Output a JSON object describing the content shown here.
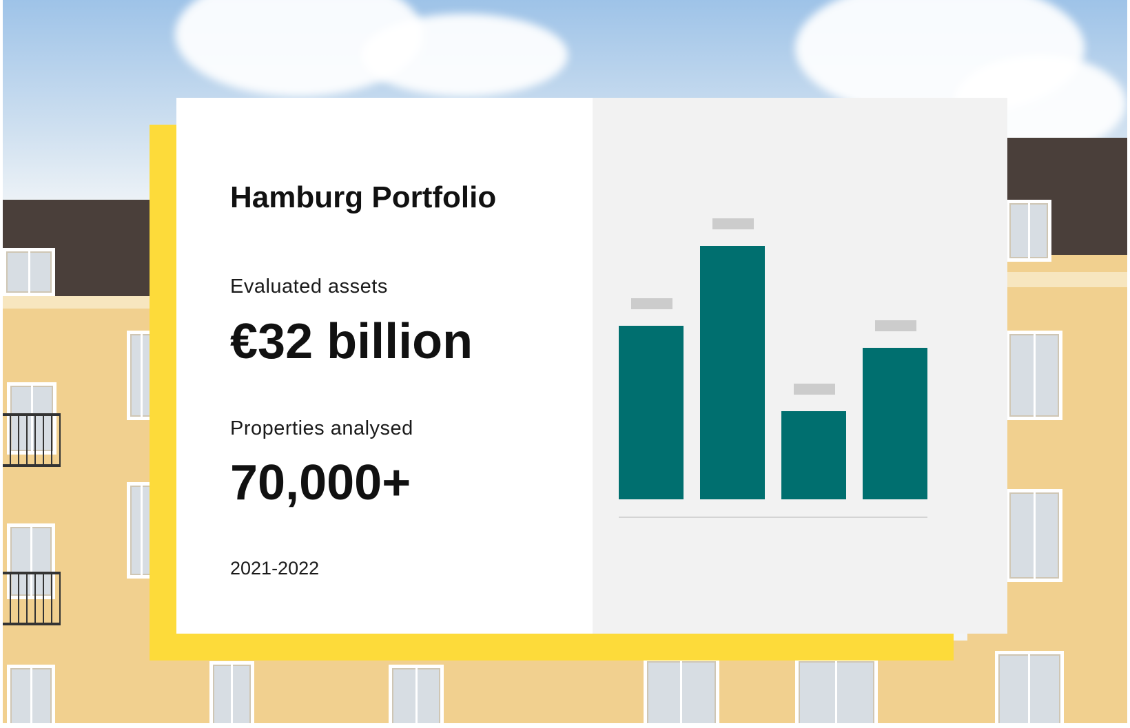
{
  "card": {
    "title": "Hamburg Portfolio",
    "metric1_label": "Evaluated assets",
    "metric1_value": "€32 billion",
    "metric2_label": "Properties analysed",
    "metric2_value": "70,000+",
    "period": "2021-2022"
  },
  "colors": {
    "accent": "#fddb3a",
    "bar": "#006f6f",
    "bar_label_placeholder": "#cccccc",
    "chart_panel": "#f2f2f2"
  },
  "chart_data": {
    "type": "bar",
    "categories": [
      "",
      "",
      "",
      ""
    ],
    "values": [
      63,
      92,
      32,
      55
    ],
    "ylim": [
      0,
      100
    ],
    "grid": false,
    "legend": "none"
  }
}
